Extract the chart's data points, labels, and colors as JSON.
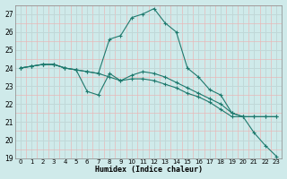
{
  "xlabel": "Humidex (Indice chaleur)",
  "bg_color": "#cfeaea",
  "line_color": "#1e7a6e",
  "xlim": [
    -0.5,
    23.5
  ],
  "ylim": [
    19,
    27.5
  ],
  "yticks": [
    19,
    20,
    21,
    22,
    23,
    24,
    25,
    26,
    27
  ],
  "xticks": [
    0,
    1,
    2,
    3,
    4,
    5,
    6,
    7,
    8,
    9,
    10,
    11,
    12,
    13,
    14,
    15,
    16,
    17,
    18,
    19,
    20,
    21,
    22,
    23
  ],
  "series": [
    {
      "x": [
        0,
        1,
        2,
        3,
        4,
        5,
        6,
        7,
        8,
        9,
        10,
        11,
        12,
        13,
        14,
        15,
        16,
        17,
        18,
        19,
        20,
        21,
        22,
        23
      ],
      "y": [
        24.0,
        24.1,
        24.2,
        24.2,
        24.0,
        23.9,
        23.8,
        23.7,
        25.6,
        25.8,
        26.8,
        27.0,
        27.3,
        26.5,
        26.0,
        24.0,
        23.5,
        22.8,
        22.5,
        21.5,
        21.3,
        20.4,
        19.7,
        19.1
      ]
    },
    {
      "x": [
        0,
        1,
        2,
        3,
        4,
        5,
        6,
        7,
        8,
        9,
        10,
        11,
        12,
        13,
        14,
        15,
        16,
        17,
        18,
        19,
        20,
        21,
        22,
        23
      ],
      "y": [
        24.0,
        24.1,
        24.2,
        24.2,
        24.0,
        23.9,
        23.8,
        23.7,
        23.5,
        23.3,
        23.6,
        23.8,
        23.7,
        23.5,
        23.2,
        22.9,
        22.6,
        22.3,
        22.0,
        21.5,
        21.3,
        21.3,
        21.3,
        21.3
      ]
    },
    {
      "x": [
        0,
        1,
        2,
        3,
        4,
        5,
        6,
        7,
        8,
        9,
        10,
        11,
        12,
        13,
        14,
        15,
        16,
        17,
        18,
        19,
        20,
        21,
        22,
        23
      ],
      "y": [
        24.0,
        24.1,
        24.2,
        24.2,
        24.0,
        23.9,
        22.7,
        22.5,
        23.7,
        23.3,
        23.4,
        23.4,
        23.3,
        23.1,
        22.9,
        22.6,
        22.4,
        22.1,
        21.7,
        21.3,
        21.3,
        21.3,
        21.3,
        21.3
      ]
    }
  ]
}
